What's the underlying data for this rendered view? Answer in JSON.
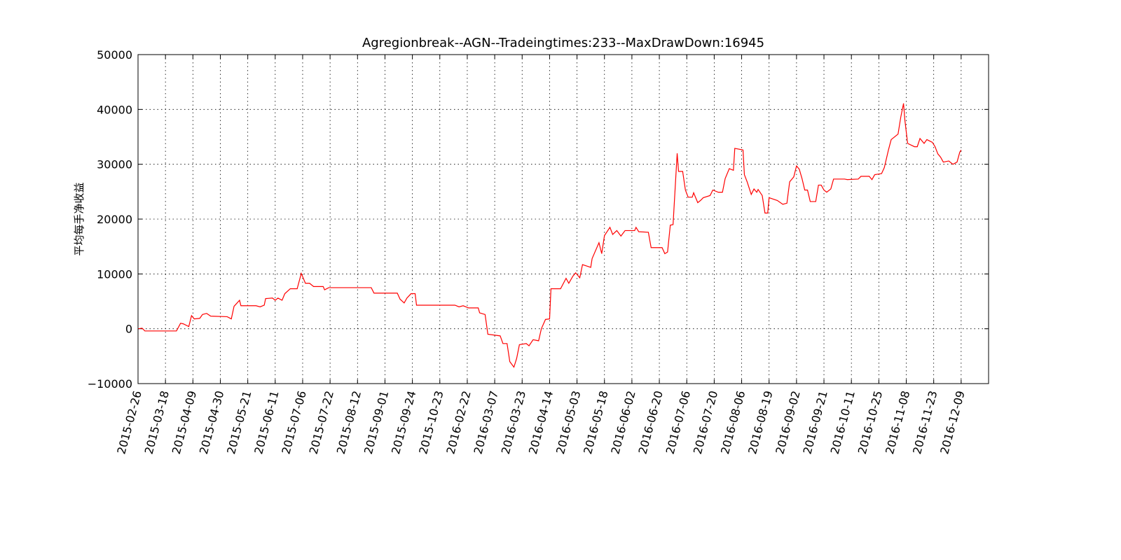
{
  "chart_data": {
    "type": "line",
    "title": "Agregionbreak--AGN--Tradeingtimes:233--MaxDrawDown:16945",
    "ylabel": "平均每手净收益",
    "color": "#ff0000",
    "grid": true,
    "xlim": [
      0,
      620
    ],
    "ylim": [
      -10000,
      50000
    ],
    "yticks": [
      {
        "value": -10000,
        "label": "−10000"
      },
      0,
      10000,
      20000,
      30000,
      40000,
      50000
    ],
    "xticks": [
      {
        "value": 0,
        "label": "2015-02-26"
      },
      {
        "value": 20,
        "label": "2015-03-18"
      },
      {
        "value": 40,
        "label": "2015-04-09"
      },
      {
        "value": 60,
        "label": "2015-04-30"
      },
      {
        "value": 80,
        "label": "2015-05-21"
      },
      {
        "value": 100,
        "label": "2015-06-11"
      },
      {
        "value": 120,
        "label": "2015-07-06"
      },
      {
        "value": 140,
        "label": "2015-07-22"
      },
      {
        "value": 160,
        "label": "2015-08-12"
      },
      {
        "value": 180,
        "label": "2015-09-01"
      },
      {
        "value": 200,
        "label": "2015-09-24"
      },
      {
        "value": 220,
        "label": "2015-10-23"
      },
      {
        "value": 240,
        "label": "2016-02-22"
      },
      {
        "value": 260,
        "label": "2016-03-07"
      },
      {
        "value": 280,
        "label": "2016-03-23"
      },
      {
        "value": 300,
        "label": "2016-04-14"
      },
      {
        "value": 320,
        "label": "2016-05-03"
      },
      {
        "value": 340,
        "label": "2016-05-18"
      },
      {
        "value": 360,
        "label": "2016-06-02"
      },
      {
        "value": 380,
        "label": "2016-06-20"
      },
      {
        "value": 400,
        "label": "2016-07-06"
      },
      {
        "value": 420,
        "label": "2016-07-20"
      },
      {
        "value": 440,
        "label": "2016-08-06"
      },
      {
        "value": 460,
        "label": "2016-08-19"
      },
      {
        "value": 480,
        "label": "2016-09-02"
      },
      {
        "value": 500,
        "label": "2016-09-21"
      },
      {
        "value": 520,
        "label": "2016-10-11"
      },
      {
        "value": 540,
        "label": "2016-10-25"
      },
      {
        "value": 560,
        "label": "2016-11-08"
      },
      {
        "value": 580,
        "label": "2016-11-23"
      },
      {
        "value": 600,
        "label": "2016-12-09"
      }
    ],
    "x": [
      0,
      3,
      5,
      28,
      31,
      33,
      37,
      39,
      41,
      45,
      47,
      50,
      53,
      65,
      68,
      70,
      74,
      75,
      86,
      89,
      92,
      93,
      98,
      100,
      102,
      105,
      107,
      111,
      116,
      119,
      122,
      125,
      128,
      135,
      136,
      139,
      170,
      172,
      189,
      191,
      194,
      196,
      199,
      202,
      203,
      231,
      234,
      237,
      241,
      248,
      249,
      253,
      255,
      264,
      266,
      269,
      271,
      274,
      276,
      278,
      283,
      285,
      288,
      292,
      294,
      297,
      300,
      301,
      308,
      312,
      314,
      317,
      319,
      322,
      324,
      330,
      331,
      336,
      338,
      340,
      344,
      346,
      349,
      352,
      355,
      362,
      363,
      365,
      372,
      374,
      382,
      384,
      386,
      388,
      390,
      393,
      394,
      397,
      399,
      401,
      404,
      405,
      408,
      410,
      412,
      417,
      419,
      423,
      426,
      428,
      431,
      434,
      435,
      441,
      442,
      444,
      447,
      449,
      451,
      452,
      455,
      457,
      459,
      460,
      466,
      470,
      473,
      475,
      478,
      480,
      482,
      484,
      486,
      488,
      490,
      494,
      496,
      498,
      500,
      502,
      505,
      507,
      515,
      517,
      525,
      527,
      533,
      535,
      537,
      542,
      544,
      547,
      549,
      554,
      556,
      558,
      559,
      561,
      566,
      568,
      570,
      573,
      575,
      579,
      581,
      583,
      585,
      587,
      591,
      594,
      597,
      599,
      600
    ],
    "values": [
      0,
      100,
      -400,
      -400,
      1000,
      900,
      400,
      2400,
      1800,
      1900,
      2600,
      2800,
      2300,
      2200,
      1800,
      4100,
      5200,
      4200,
      4200,
      4000,
      4300,
      5500,
      5600,
      5200,
      5600,
      5200,
      6400,
      7300,
      7300,
      10100,
      8300,
      8300,
      7700,
      7700,
      7100,
      7500,
      7500,
      6500,
      6500,
      5400,
      4700,
      5600,
      6400,
      6400,
      4300,
      4300,
      4000,
      4200,
      3800,
      3800,
      2900,
      2600,
      -1000,
      -1300,
      -2700,
      -2700,
      -6000,
      -7000,
      -5400,
      -2900,
      -2700,
      -3100,
      -2000,
      -2200,
      0,
      1700,
      1800,
      7300,
      7300,
      9200,
      8300,
      9600,
      10200,
      9300,
      11700,
      11200,
      12800,
      15700,
      13700,
      17000,
      18500,
      17200,
      17900,
      16900,
      17900,
      17900,
      18500,
      17700,
      17600,
      14800,
      14800,
      13700,
      14000,
      18900,
      19000,
      32000,
      28700,
      28700,
      25300,
      24000,
      24000,
      24800,
      23000,
      23400,
      23900,
      24300,
      25300,
      24900,
      24900,
      27400,
      29200,
      28900,
      32900,
      32600,
      28100,
      26800,
      24500,
      25500,
      24900,
      25400,
      24300,
      21100,
      21100,
      23900,
      23400,
      22700,
      22900,
      26800,
      27700,
      29700,
      29100,
      27400,
      25300,
      25300,
      23200,
      23200,
      26200,
      26200,
      25300,
      24900,
      25500,
      27300,
      27300,
      27200,
      27300,
      27800,
      27800,
      27200,
      28100,
      28300,
      29400,
      32600,
      34500,
      35500,
      38600,
      41100,
      38000,
      33800,
      33200,
      33200,
      34700,
      33800,
      34500,
      34000,
      33200,
      31900,
      31300,
      30400,
      30600,
      30000,
      30400,
      32200,
      32600
    ]
  }
}
